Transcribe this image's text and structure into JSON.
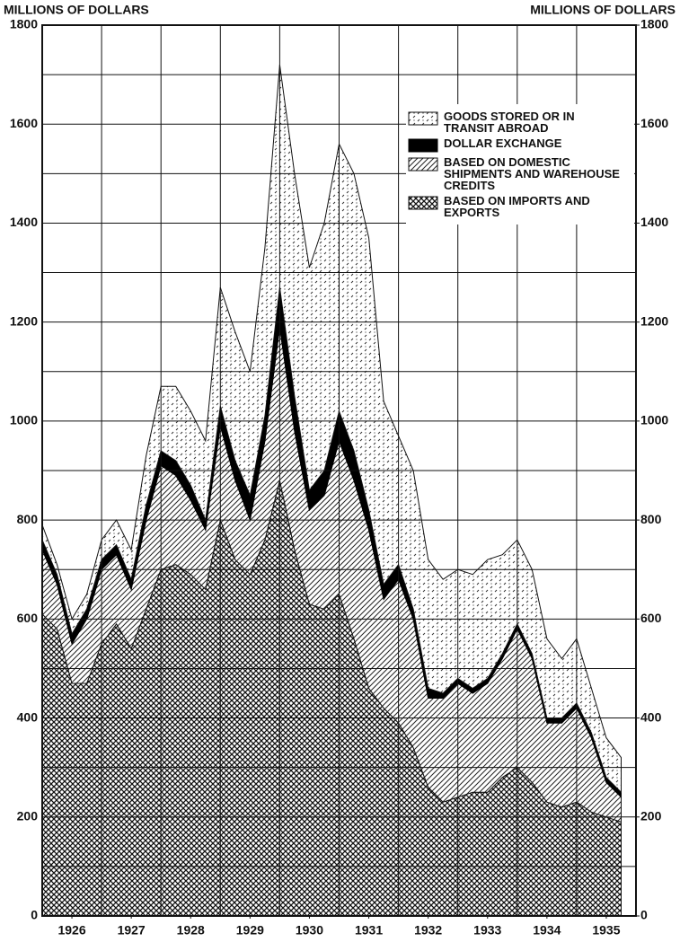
{
  "chart_data": {
    "type": "stacked_area",
    "y_label": "MILLIONS OF DOLLARS",
    "y2_label": "MILLIONS OF DOLLARS",
    "x": [
      1926,
      1926.25,
      1926.5,
      1926.75,
      1927,
      1927.25,
      1927.5,
      1927.75,
      1928,
      1928.25,
      1928.5,
      1928.75,
      1929,
      1929.25,
      1929.5,
      1929.75,
      1930,
      1930.25,
      1930.5,
      1930.75,
      1931,
      1931.25,
      1931.5,
      1931.75,
      1932,
      1932.25,
      1932.5,
      1932.75,
      1933,
      1933.25,
      1933.5,
      1933.75,
      1934,
      1934.25,
      1934.5,
      1934.75,
      1935,
      1935.25,
      1935.5,
      1935.75
    ],
    "series": [
      {
        "name": "BASED ON IMPORTS AND EXPORTS",
        "color": "#111111",
        "pattern": "crosshatch",
        "values": [
          610,
          580,
          470,
          470,
          550,
          590,
          540,
          620,
          700,
          710,
          690,
          660,
          800,
          720,
          690,
          760,
          880,
          740,
          630,
          620,
          650,
          560,
          460,
          420,
          390,
          340,
          260,
          230,
          240,
          250,
          250,
          280,
          300,
          270,
          230,
          220,
          230,
          210,
          200,
          190
        ]
      },
      {
        "name": "BASED ON DOMESTIC SHIPMENTS AND WAREHOUSE CREDITS",
        "color": "#111111",
        "pattern": "diagonal",
        "values": [
          130,
          90,
          80,
          130,
          150,
          140,
          120,
          180,
          210,
          180,
          150,
          120,
          190,
          160,
          110,
          200,
          310,
          240,
          190,
          230,
          310,
          320,
          320,
          220,
          290,
          260,
          180,
          210,
          230,
          200,
          220,
          240,
          280,
          250,
          160,
          170,
          190,
          150,
          70,
          50
        ]
      },
      {
        "name": "DOLLAR EXCHANGE",
        "color": "#000000",
        "pattern": "solid",
        "values": [
          20,
          20,
          20,
          20,
          20,
          20,
          20,
          30,
          30,
          30,
          30,
          20,
          40,
          40,
          50,
          50,
          80,
          70,
          40,
          50,
          60,
          60,
          40,
          30,
          30,
          20,
          20,
          10,
          10,
          10,
          10,
          10,
          10,
          10,
          10,
          10,
          10,
          10,
          10,
          10
        ]
      },
      {
        "name": "GOODS STORED OR IN TRANSIT ABROAD",
        "color": "#111111",
        "pattern": "dashes",
        "values": [
          30,
          20,
          30,
          30,
          40,
          50,
          60,
          100,
          130,
          150,
          150,
          160,
          240,
          260,
          250,
          340,
          450,
          450,
          450,
          500,
          540,
          560,
          550,
          370,
          260,
          280,
          260,
          230,
          220,
          230,
          240,
          200,
          170,
          170,
          160,
          120,
          130,
          90,
          80,
          70
        ]
      }
    ],
    "xlim": [
      1926,
      1936
    ],
    "xticks": [
      {
        "value": 1926.5,
        "label": "1926"
      },
      {
        "value": 1927.5,
        "label": "1927"
      },
      {
        "value": 1928.5,
        "label": "1928"
      },
      {
        "value": 1929.5,
        "label": "1929"
      },
      {
        "value": 1930.5,
        "label": "1930"
      },
      {
        "value": 1931.5,
        "label": "1931"
      },
      {
        "value": 1932.5,
        "label": "1932"
      },
      {
        "value": 1933.5,
        "label": "1933"
      },
      {
        "value": 1934.5,
        "label": "1934"
      },
      {
        "value": 1935.5,
        "label": "1935"
      }
    ],
    "x_minor_ticks": [
      1927,
      1928,
      1929,
      1930,
      1931,
      1932,
      1933,
      1934,
      1935
    ],
    "ylim": [
      0,
      1800
    ],
    "yticks": [
      0,
      200,
      400,
      600,
      800,
      1000,
      1200,
      1400,
      1600,
      1800
    ],
    "y_minor_ticks": [
      100,
      300,
      500,
      700,
      900,
      1100,
      1300,
      1500,
      1700
    ],
    "y2lim": [
      0,
      1800
    ],
    "y2ticks": [
      0,
      200,
      400,
      600,
      800,
      1000,
      1200,
      1400,
      1600,
      1800
    ],
    "grid": true,
    "legend": "upper right"
  }
}
